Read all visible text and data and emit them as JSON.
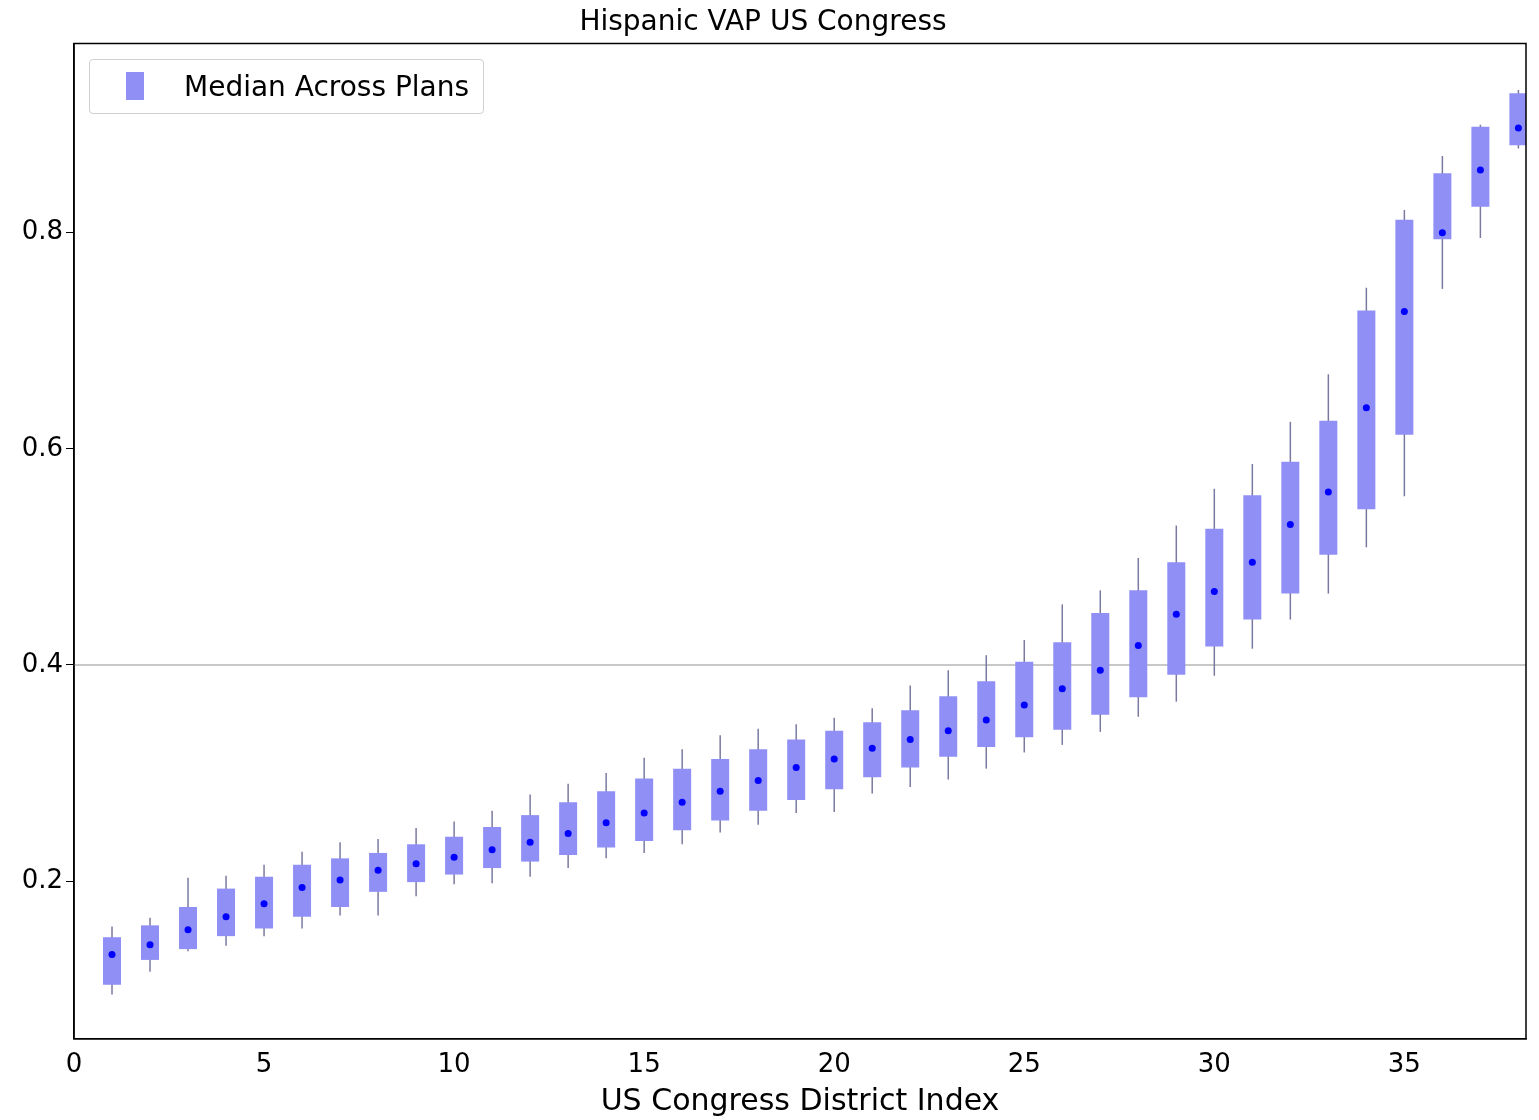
{
  "chart_data": {
    "type": "box",
    "title": "Hispanic VAP US Congress",
    "xlabel": "US Congress District Index",
    "x": [
      1,
      2,
      3,
      4,
      5,
      6,
      7,
      8,
      9,
      10,
      11,
      12,
      13,
      14,
      15,
      16,
      17,
      18,
      19,
      20,
      21,
      22,
      23,
      24,
      25,
      26,
      27,
      28,
      29,
      30,
      31,
      32,
      33,
      34,
      35,
      36,
      37,
      38
    ],
    "xlim": [
      0,
      38.2
    ],
    "xticks": [
      0,
      5,
      10,
      15,
      20,
      25,
      30,
      35
    ],
    "ylim": [
      0.054,
      0.975
    ],
    "yticks": [
      0.2,
      0.4,
      0.6,
      0.8
    ],
    "grid": false,
    "legend": "top left",
    "ref_lines": [
      {
        "axis": "y",
        "value": 0.4,
        "color": "#c8c8c8"
      }
    ],
    "series": [
      {
        "name": "Median Across Plans",
        "color": "#8f8ff5",
        "marker": "circle",
        "boxes": [
          {
            "low": 0.095,
            "q1": 0.104,
            "median": 0.132,
            "q3": 0.148,
            "high": 0.158
          },
          {
            "low": 0.116,
            "q1": 0.127,
            "median": 0.141,
            "q3": 0.159,
            "high": 0.166
          },
          {
            "low": 0.135,
            "q1": 0.137,
            "median": 0.155,
            "q3": 0.176,
            "high": 0.203
          },
          {
            "low": 0.14,
            "q1": 0.149,
            "median": 0.167,
            "q3": 0.193,
            "high": 0.205
          },
          {
            "low": 0.149,
            "q1": 0.156,
            "median": 0.179,
            "q3": 0.204,
            "high": 0.215
          },
          {
            "low": 0.156,
            "q1": 0.167,
            "median": 0.194,
            "q3": 0.215,
            "high": 0.227
          },
          {
            "low": 0.168,
            "q1": 0.176,
            "median": 0.201,
            "q3": 0.221,
            "high": 0.236
          },
          {
            "low": 0.168,
            "q1": 0.19,
            "median": 0.21,
            "q3": 0.226,
            "high": 0.239
          },
          {
            "low": 0.186,
            "q1": 0.199,
            "median": 0.216,
            "q3": 0.234,
            "high": 0.249
          },
          {
            "low": 0.197,
            "q1": 0.206,
            "median": 0.222,
            "q3": 0.241,
            "high": 0.255
          },
          {
            "low": 0.198,
            "q1": 0.212,
            "median": 0.229,
            "q3": 0.25,
            "high": 0.265
          },
          {
            "low": 0.204,
            "q1": 0.218,
            "median": 0.236,
            "q3": 0.261,
            "high": 0.28
          },
          {
            "low": 0.212,
            "q1": 0.224,
            "median": 0.244,
            "q3": 0.273,
            "high": 0.29
          },
          {
            "low": 0.221,
            "q1": 0.231,
            "median": 0.254,
            "q3": 0.283,
            "high": 0.3
          },
          {
            "low": 0.226,
            "q1": 0.237,
            "median": 0.263,
            "q3": 0.295,
            "high": 0.314
          },
          {
            "low": 0.234,
            "q1": 0.247,
            "median": 0.273,
            "q3": 0.304,
            "high": 0.322
          },
          {
            "low": 0.245,
            "q1": 0.256,
            "median": 0.283,
            "q3": 0.313,
            "high": 0.335
          },
          {
            "low": 0.252,
            "q1": 0.265,
            "median": 0.293,
            "q3": 0.322,
            "high": 0.341
          },
          {
            "low": 0.263,
            "q1": 0.275,
            "median": 0.305,
            "q3": 0.331,
            "high": 0.345
          },
          {
            "low": 0.264,
            "q1": 0.285,
            "median": 0.313,
            "q3": 0.339,
            "high": 0.351
          },
          {
            "low": 0.281,
            "q1": 0.296,
            "median": 0.323,
            "q3": 0.347,
            "high": 0.36
          },
          {
            "low": 0.287,
            "q1": 0.305,
            "median": 0.331,
            "q3": 0.358,
            "high": 0.381
          },
          {
            "low": 0.294,
            "q1": 0.315,
            "median": 0.339,
            "q3": 0.371,
            "high": 0.395
          },
          {
            "low": 0.304,
            "q1": 0.324,
            "median": 0.349,
            "q3": 0.385,
            "high": 0.409
          },
          {
            "low": 0.319,
            "q1": 0.333,
            "median": 0.363,
            "q3": 0.403,
            "high": 0.423
          },
          {
            "low": 0.326,
            "q1": 0.34,
            "median": 0.378,
            "q3": 0.421,
            "high": 0.456
          },
          {
            "low": 0.338,
            "q1": 0.354,
            "median": 0.395,
            "q3": 0.448,
            "high": 0.469
          },
          {
            "low": 0.352,
            "q1": 0.37,
            "median": 0.418,
            "q3": 0.469,
            "high": 0.499
          },
          {
            "low": 0.366,
            "q1": 0.391,
            "median": 0.447,
            "q3": 0.495,
            "high": 0.529
          },
          {
            "low": 0.39,
            "q1": 0.417,
            "median": 0.468,
            "q3": 0.526,
            "high": 0.563
          },
          {
            "low": 0.415,
            "q1": 0.442,
            "median": 0.495,
            "q3": 0.557,
            "high": 0.586
          },
          {
            "low": 0.442,
            "q1": 0.466,
            "median": 0.53,
            "q3": 0.588,
            "high": 0.625
          },
          {
            "low": 0.466,
            "q1": 0.502,
            "median": 0.56,
            "q3": 0.626,
            "high": 0.669
          },
          {
            "low": 0.509,
            "q1": 0.544,
            "median": 0.638,
            "q3": 0.728,
            "high": 0.749
          },
          {
            "low": 0.556,
            "q1": 0.613,
            "median": 0.727,
            "q3": 0.812,
            "high": 0.821
          },
          {
            "low": 0.748,
            "q1": 0.794,
            "median": 0.8,
            "q3": 0.855,
            "high": 0.871
          },
          {
            "low": 0.795,
            "q1": 0.824,
            "median": 0.858,
            "q3": 0.898,
            "high": 0.9
          },
          {
            "low": 0.878,
            "q1": 0.881,
            "median": 0.897,
            "q3": 0.929,
            "high": 0.932
          }
        ]
      }
    ]
  }
}
